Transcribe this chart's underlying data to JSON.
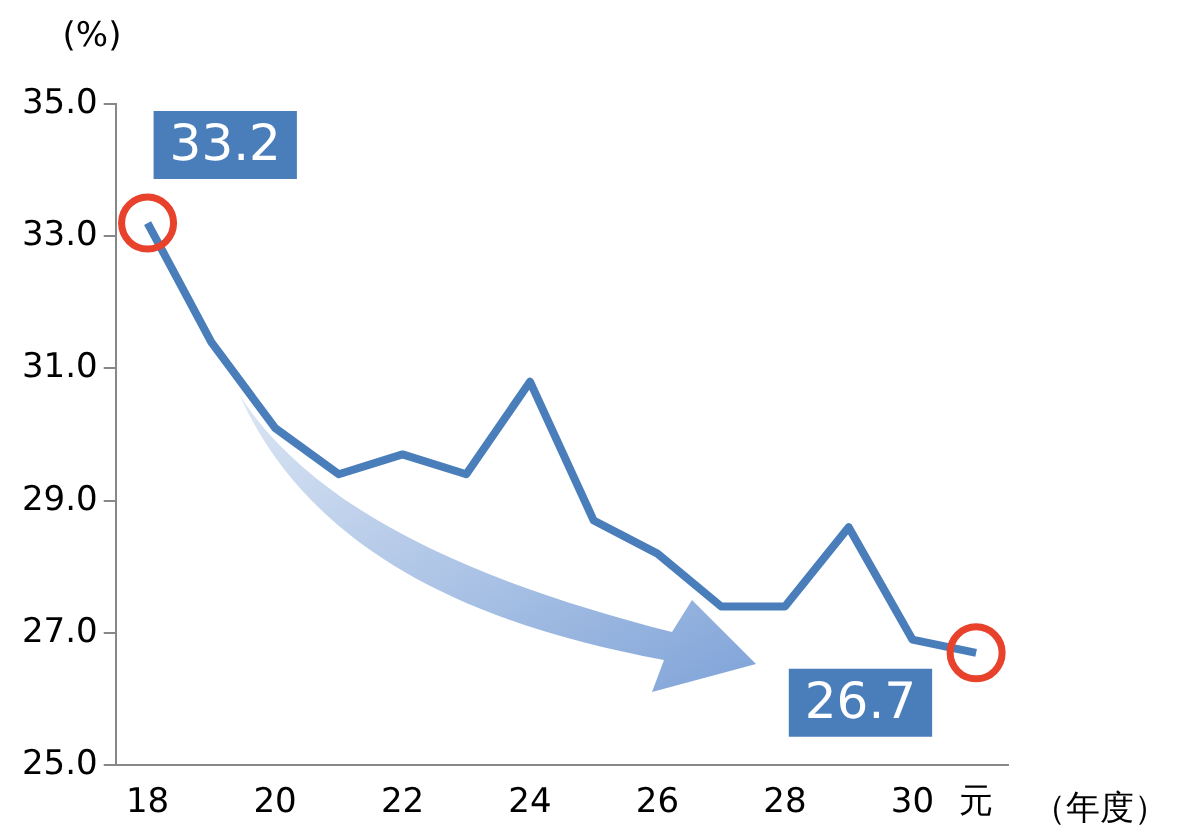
{
  "chart_data": {
    "type": "line",
    "ylabel": "(%)",
    "xlabel": "（年度）",
    "categories": [
      "18",
      null,
      "20",
      null,
      "22",
      null,
      "24",
      null,
      "26",
      null,
      "28",
      null,
      "30",
      "元"
    ],
    "series": [
      {
        "color": "#4a7ebb",
        "values": [
          33.2,
          31.4,
          30.1,
          29.4,
          29.7,
          29.4,
          30.8,
          28.7,
          28.2,
          27.4,
          27.4,
          28.6,
          26.9,
          26.7
        ]
      }
    ],
    "ylim": [
      25,
      35
    ],
    "yticks": [
      {
        "value": 25,
        "label": "25.0"
      },
      {
        "value": 27,
        "label": "27.0"
      },
      {
        "value": 29,
        "label": "29.0"
      },
      {
        "value": 31,
        "label": "31.0"
      },
      {
        "value": 33,
        "label": "33.0"
      },
      {
        "value": 35,
        "label": "35.0"
      }
    ],
    "grid": false,
    "legend": false,
    "marker": "none",
    "line_style": "solid",
    "annotations": [
      {
        "text": "33.2",
        "x": "18",
        "y": 33.2
      },
      {
        "text": "26.7",
        "x": "元",
        "y": 26.7
      }
    ]
  }
}
